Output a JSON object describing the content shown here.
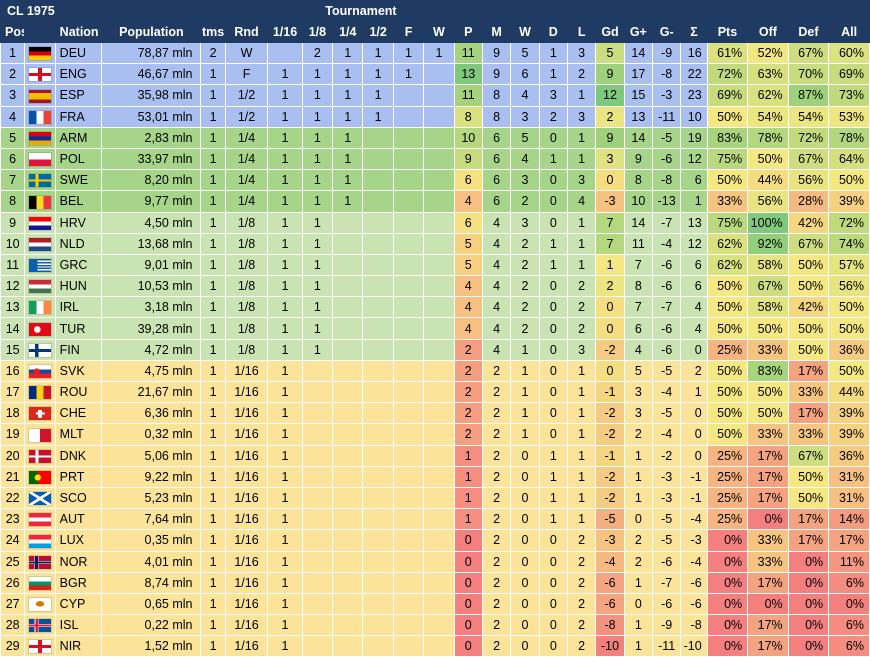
{
  "title": "CL 1975",
  "tournament_label": "Tournament",
  "headers": [
    "Pos",
    "Nation",
    "Population",
    "tms",
    "Rnd",
    "1/16",
    "1/8",
    "1/4",
    "1/2",
    "F",
    "W",
    "P",
    "M",
    "W",
    "D",
    "L",
    "Gd",
    "G+",
    "G-",
    "Σ",
    "Pts",
    "Off",
    "Def",
    "All"
  ],
  "colors": {
    "header_bg": "#1f3b63",
    "tier_blue": "#a9bff0",
    "tier_green_dark": "#a6d58a",
    "tier_green_light": "#c9e4b2",
    "tier_yellow": "#fbe39a",
    "cell_green": "#7fc97a",
    "cell_light_green": "#c3e39a",
    "cell_yellow": "#f5e882",
    "cell_orange": "#f7b27a",
    "cell_red": "#f47f7f"
  },
  "rows": [
    {
      "pos": "1",
      "nation": "DEU",
      "flag": "de-flag-icon",
      "population": "78,87 mln",
      "tms": "2",
      "rnd": "W",
      "r16": "",
      "r8": "2",
      "r4": "1",
      "r2": "1",
      "f": "1",
      "w": "1",
      "p": "11",
      "m": "9",
      "win": "5",
      "d": "1",
      "l": "3",
      "gd": "5",
      "gp": "14",
      "gm": "-9",
      "s": "16",
      "pts": "61%",
      "off": "52%",
      "def": "67%",
      "all": "60%"
    },
    {
      "pos": "2",
      "nation": "ENG",
      "flag": "eng-flag-icon",
      "population": "46,67 mln",
      "tms": "1",
      "rnd": "F",
      "r16": "1",
      "r8": "1",
      "r4": "1",
      "r2": "1",
      "f": "1",
      "w": "",
      "p": "13",
      "m": "9",
      "win": "6",
      "d": "1",
      "l": "2",
      "gd": "9",
      "gp": "17",
      "gm": "-8",
      "s": "22",
      "pts": "72%",
      "off": "63%",
      "def": "70%",
      "all": "69%"
    },
    {
      "pos": "3",
      "nation": "ESP",
      "flag": "es-flag-icon",
      "population": "35,98 mln",
      "tms": "1",
      "rnd": "1/2",
      "r16": "1",
      "r8": "1",
      "r4": "1",
      "r2": "1",
      "f": "",
      "w": "",
      "p": "11",
      "m": "8",
      "win": "4",
      "d": "3",
      "l": "1",
      "gd": "12",
      "gp": "15",
      "gm": "-3",
      "s": "23",
      "pts": "69%",
      "off": "62%",
      "def": "87%",
      "all": "73%"
    },
    {
      "pos": "4",
      "nation": "FRA",
      "flag": "fr-flag-icon",
      "population": "53,01 mln",
      "tms": "1",
      "rnd": "1/2",
      "r16": "1",
      "r8": "1",
      "r4": "1",
      "r2": "1",
      "f": "",
      "w": "",
      "p": "8",
      "m": "8",
      "win": "3",
      "d": "2",
      "l": "3",
      "gd": "2",
      "gp": "13",
      "gm": "-11",
      "s": "10",
      "pts": "50%",
      "off": "54%",
      "def": "54%",
      "all": "53%"
    },
    {
      "pos": "5",
      "nation": "ARM",
      "flag": "am-flag-icon",
      "population": "2,83 mln",
      "tms": "1",
      "rnd": "1/4",
      "r16": "1",
      "r8": "1",
      "r4": "1",
      "r2": "",
      "f": "",
      "w": "",
      "p": "10",
      "m": "6",
      "win": "5",
      "d": "0",
      "l": "1",
      "gd": "9",
      "gp": "14",
      "gm": "-5",
      "s": "19",
      "pts": "83%",
      "off": "78%",
      "def": "72%",
      "all": "78%"
    },
    {
      "pos": "6",
      "nation": "POL",
      "flag": "pl-flag-icon",
      "population": "33,97 mln",
      "tms": "1",
      "rnd": "1/4",
      "r16": "1",
      "r8": "1",
      "r4": "1",
      "r2": "",
      "f": "",
      "w": "",
      "p": "9",
      "m": "6",
      "win": "4",
      "d": "1",
      "l": "1",
      "gd": "3",
      "gp": "9",
      "gm": "-6",
      "s": "12",
      "pts": "75%",
      "off": "50%",
      "def": "67%",
      "all": "64%"
    },
    {
      "pos": "7",
      "nation": "SWE",
      "flag": "se-flag-icon",
      "population": "8,20 mln",
      "tms": "1",
      "rnd": "1/4",
      "r16": "1",
      "r8": "1",
      "r4": "1",
      "r2": "",
      "f": "",
      "w": "",
      "p": "6",
      "m": "6",
      "win": "3",
      "d": "0",
      "l": "3",
      "gd": "0",
      "gp": "8",
      "gm": "-8",
      "s": "6",
      "pts": "50%",
      "off": "44%",
      "def": "56%",
      "all": "50%"
    },
    {
      "pos": "8",
      "nation": "BEL",
      "flag": "be-flag-icon",
      "population": "9,77 mln",
      "tms": "1",
      "rnd": "1/4",
      "r16": "1",
      "r8": "1",
      "r4": "1",
      "r2": "",
      "f": "",
      "w": "",
      "p": "4",
      "m": "6",
      "win": "2",
      "d": "0",
      "l": "4",
      "gd": "-3",
      "gp": "10",
      "gm": "-13",
      "s": "1",
      "pts": "33%",
      "off": "56%",
      "def": "28%",
      "all": "39%"
    },
    {
      "pos": "9",
      "nation": "HRV",
      "flag": "hr-flag-icon",
      "population": "4,50 mln",
      "tms": "1",
      "rnd": "1/8",
      "r16": "1",
      "r8": "1",
      "r4": "",
      "r2": "",
      "f": "",
      "w": "",
      "p": "6",
      "m": "4",
      "win": "3",
      "d": "0",
      "l": "1",
      "gd": "7",
      "gp": "14",
      "gm": "-7",
      "s": "13",
      "pts": "75%",
      "off": "100%",
      "def": "42%",
      "all": "72%"
    },
    {
      "pos": "10",
      "nation": "NLD",
      "flag": "nl-flag-icon",
      "population": "13,68 mln",
      "tms": "1",
      "rnd": "1/8",
      "r16": "1",
      "r8": "1",
      "r4": "",
      "r2": "",
      "f": "",
      "w": "",
      "p": "5",
      "m": "4",
      "win": "2",
      "d": "1",
      "l": "1",
      "gd": "7",
      "gp": "11",
      "gm": "-4",
      "s": "12",
      "pts": "62%",
      "off": "92%",
      "def": "67%",
      "all": "74%"
    },
    {
      "pos": "11",
      "nation": "GRC",
      "flag": "gr-flag-icon",
      "population": "9,01 mln",
      "tms": "1",
      "rnd": "1/8",
      "r16": "1",
      "r8": "1",
      "r4": "",
      "r2": "",
      "f": "",
      "w": "",
      "p": "5",
      "m": "4",
      "win": "2",
      "d": "1",
      "l": "1",
      "gd": "1",
      "gp": "7",
      "gm": "-6",
      "s": "6",
      "pts": "62%",
      "off": "58%",
      "def": "50%",
      "all": "57%"
    },
    {
      "pos": "12",
      "nation": "HUN",
      "flag": "hu-flag-icon",
      "population": "10,53 mln",
      "tms": "1",
      "rnd": "1/8",
      "r16": "1",
      "r8": "1",
      "r4": "",
      "r2": "",
      "f": "",
      "w": "",
      "p": "4",
      "m": "4",
      "win": "2",
      "d": "0",
      "l": "2",
      "gd": "2",
      "gp": "8",
      "gm": "-6",
      "s": "6",
      "pts": "50%",
      "off": "67%",
      "def": "50%",
      "all": "56%"
    },
    {
      "pos": "13",
      "nation": "IRL",
      "flag": "ie-flag-icon",
      "population": "3,18 mln",
      "tms": "1",
      "rnd": "1/8",
      "r16": "1",
      "r8": "1",
      "r4": "",
      "r2": "",
      "f": "",
      "w": "",
      "p": "4",
      "m": "4",
      "win": "2",
      "d": "0",
      "l": "2",
      "gd": "0",
      "gp": "7",
      "gm": "-7",
      "s": "4",
      "pts": "50%",
      "off": "58%",
      "def": "42%",
      "all": "50%"
    },
    {
      "pos": "14",
      "nation": "TUR",
      "flag": "tr-flag-icon",
      "population": "39,28 mln",
      "tms": "1",
      "rnd": "1/8",
      "r16": "1",
      "r8": "1",
      "r4": "",
      "r2": "",
      "f": "",
      "w": "",
      "p": "4",
      "m": "4",
      "win": "2",
      "d": "0",
      "l": "2",
      "gd": "0",
      "gp": "6",
      "gm": "-6",
      "s": "4",
      "pts": "50%",
      "off": "50%",
      "def": "50%",
      "all": "50%"
    },
    {
      "pos": "15",
      "nation": "FIN",
      "flag": "fi-flag-icon",
      "population": "4,72 mln",
      "tms": "1",
      "rnd": "1/8",
      "r16": "1",
      "r8": "1",
      "r4": "",
      "r2": "",
      "f": "",
      "w": "",
      "p": "2",
      "m": "4",
      "win": "1",
      "d": "0",
      "l": "3",
      "gd": "-2",
      "gp": "4",
      "gm": "-6",
      "s": "0",
      "pts": "25%",
      "off": "33%",
      "def": "50%",
      "all": "36%"
    },
    {
      "pos": "16",
      "nation": "SVK",
      "flag": "sk-flag-icon",
      "population": "4,75 mln",
      "tms": "1",
      "rnd": "1/16",
      "r16": "1",
      "r8": "",
      "r4": "",
      "r2": "",
      "f": "",
      "w": "",
      "p": "2",
      "m": "2",
      "win": "1",
      "d": "0",
      "l": "1",
      "gd": "0",
      "gp": "5",
      "gm": "-5",
      "s": "2",
      "pts": "50%",
      "off": "83%",
      "def": "17%",
      "all": "50%"
    },
    {
      "pos": "17",
      "nation": "ROU",
      "flag": "ro-flag-icon",
      "population": "21,67 mln",
      "tms": "1",
      "rnd": "1/16",
      "r16": "1",
      "r8": "",
      "r4": "",
      "r2": "",
      "f": "",
      "w": "",
      "p": "2",
      "m": "2",
      "win": "1",
      "d": "0",
      "l": "1",
      "gd": "-1",
      "gp": "3",
      "gm": "-4",
      "s": "1",
      "pts": "50%",
      "off": "50%",
      "def": "33%",
      "all": "44%"
    },
    {
      "pos": "18",
      "nation": "CHE",
      "flag": "ch-flag-icon",
      "population": "6,36 mln",
      "tms": "1",
      "rnd": "1/16",
      "r16": "1",
      "r8": "",
      "r4": "",
      "r2": "",
      "f": "",
      "w": "",
      "p": "2",
      "m": "2",
      "win": "1",
      "d": "0",
      "l": "1",
      "gd": "-2",
      "gp": "3",
      "gm": "-5",
      "s": "0",
      "pts": "50%",
      "off": "50%",
      "def": "17%",
      "all": "39%"
    },
    {
      "pos": "19",
      "nation": "MLT",
      "flag": "mt-flag-icon",
      "population": "0,32 mln",
      "tms": "1",
      "rnd": "1/16",
      "r16": "1",
      "r8": "",
      "r4": "",
      "r2": "",
      "f": "",
      "w": "",
      "p": "2",
      "m": "2",
      "win": "1",
      "d": "0",
      "l": "1",
      "gd": "-2",
      "gp": "2",
      "gm": "-4",
      "s": "0",
      "pts": "50%",
      "off": "33%",
      "def": "33%",
      "all": "39%"
    },
    {
      "pos": "20",
      "nation": "DNK",
      "flag": "dk-flag-icon",
      "population": "5,06 mln",
      "tms": "1",
      "rnd": "1/16",
      "r16": "1",
      "r8": "",
      "r4": "",
      "r2": "",
      "f": "",
      "w": "",
      "p": "1",
      "m": "2",
      "win": "0",
      "d": "1",
      "l": "1",
      "gd": "-1",
      "gp": "1",
      "gm": "-2",
      "s": "0",
      "pts": "25%",
      "off": "17%",
      "def": "67%",
      "all": "36%"
    },
    {
      "pos": "21",
      "nation": "PRT",
      "flag": "pt-flag-icon",
      "population": "9,22 mln",
      "tms": "1",
      "rnd": "1/16",
      "r16": "1",
      "r8": "",
      "r4": "",
      "r2": "",
      "f": "",
      "w": "",
      "p": "1",
      "m": "2",
      "win": "0",
      "d": "1",
      "l": "1",
      "gd": "-2",
      "gp": "1",
      "gm": "-3",
      "s": "-1",
      "pts": "25%",
      "off": "17%",
      "def": "50%",
      "all": "31%"
    },
    {
      "pos": "22",
      "nation": "SCO",
      "flag": "sco-flag-icon",
      "population": "5,23 mln",
      "tms": "1",
      "rnd": "1/16",
      "r16": "1",
      "r8": "",
      "r4": "",
      "r2": "",
      "f": "",
      "w": "",
      "p": "1",
      "m": "2",
      "win": "0",
      "d": "1",
      "l": "1",
      "gd": "-2",
      "gp": "1",
      "gm": "-3",
      "s": "-1",
      "pts": "25%",
      "off": "17%",
      "def": "50%",
      "all": "31%"
    },
    {
      "pos": "23",
      "nation": "AUT",
      "flag": "at-flag-icon",
      "population": "7,64 mln",
      "tms": "1",
      "rnd": "1/16",
      "r16": "1",
      "r8": "",
      "r4": "",
      "r2": "",
      "f": "",
      "w": "",
      "p": "1",
      "m": "2",
      "win": "0",
      "d": "1",
      "l": "1",
      "gd": "-5",
      "gp": "0",
      "gm": "-5",
      "s": "-4",
      "pts": "25%",
      "off": "0%",
      "def": "17%",
      "all": "14%"
    },
    {
      "pos": "24",
      "nation": "LUX",
      "flag": "lu-flag-icon",
      "population": "0,35 mln",
      "tms": "1",
      "rnd": "1/16",
      "r16": "1",
      "r8": "",
      "r4": "",
      "r2": "",
      "f": "",
      "w": "",
      "p": "0",
      "m": "2",
      "win": "0",
      "d": "0",
      "l": "2",
      "gd": "-3",
      "gp": "2",
      "gm": "-5",
      "s": "-3",
      "pts": "0%",
      "off": "33%",
      "def": "17%",
      "all": "17%"
    },
    {
      "pos": "25",
      "nation": "NOR",
      "flag": "no-flag-icon",
      "population": "4,01 mln",
      "tms": "1",
      "rnd": "1/16",
      "r16": "1",
      "r8": "",
      "r4": "",
      "r2": "",
      "f": "",
      "w": "",
      "p": "0",
      "m": "2",
      "win": "0",
      "d": "0",
      "l": "2",
      "gd": "-4",
      "gp": "2",
      "gm": "-6",
      "s": "-4",
      "pts": "0%",
      "off": "33%",
      "def": "0%",
      "all": "11%"
    },
    {
      "pos": "26",
      "nation": "BGR",
      "flag": "bg-flag-icon",
      "population": "8,74 mln",
      "tms": "1",
      "rnd": "1/16",
      "r16": "1",
      "r8": "",
      "r4": "",
      "r2": "",
      "f": "",
      "w": "",
      "p": "0",
      "m": "2",
      "win": "0",
      "d": "0",
      "l": "2",
      "gd": "-6",
      "gp": "1",
      "gm": "-7",
      "s": "-6",
      "pts": "0%",
      "off": "17%",
      "def": "0%",
      "all": "6%"
    },
    {
      "pos": "27",
      "nation": "CYP",
      "flag": "cy-flag-icon",
      "population": "0,65 mln",
      "tms": "1",
      "rnd": "1/16",
      "r16": "1",
      "r8": "",
      "r4": "",
      "r2": "",
      "f": "",
      "w": "",
      "p": "0",
      "m": "2",
      "win": "0",
      "d": "0",
      "l": "2",
      "gd": "-6",
      "gp": "0",
      "gm": "-6",
      "s": "-6",
      "pts": "0%",
      "off": "0%",
      "def": "0%",
      "all": "0%"
    },
    {
      "pos": "28",
      "nation": "ISL",
      "flag": "is-flag-icon",
      "population": "0,22 mln",
      "tms": "1",
      "rnd": "1/16",
      "r16": "1",
      "r8": "",
      "r4": "",
      "r2": "",
      "f": "",
      "w": "",
      "p": "0",
      "m": "2",
      "win": "0",
      "d": "0",
      "l": "2",
      "gd": "-8",
      "gp": "1",
      "gm": "-9",
      "s": "-8",
      "pts": "0%",
      "off": "17%",
      "def": "0%",
      "all": "6%"
    },
    {
      "pos": "29",
      "nation": "NIR",
      "flag": "nir-flag-icon",
      "population": "1,52 mln",
      "tms": "1",
      "rnd": "1/16",
      "r16": "1",
      "r8": "",
      "r4": "",
      "r2": "",
      "f": "",
      "w": "",
      "p": "0",
      "m": "2",
      "win": "0",
      "d": "0",
      "l": "2",
      "gd": "-10",
      "gp": "1",
      "gm": "-11",
      "s": "-10",
      "pts": "0%",
      "off": "17%",
      "def": "0%",
      "all": "6%"
    }
  ]
}
